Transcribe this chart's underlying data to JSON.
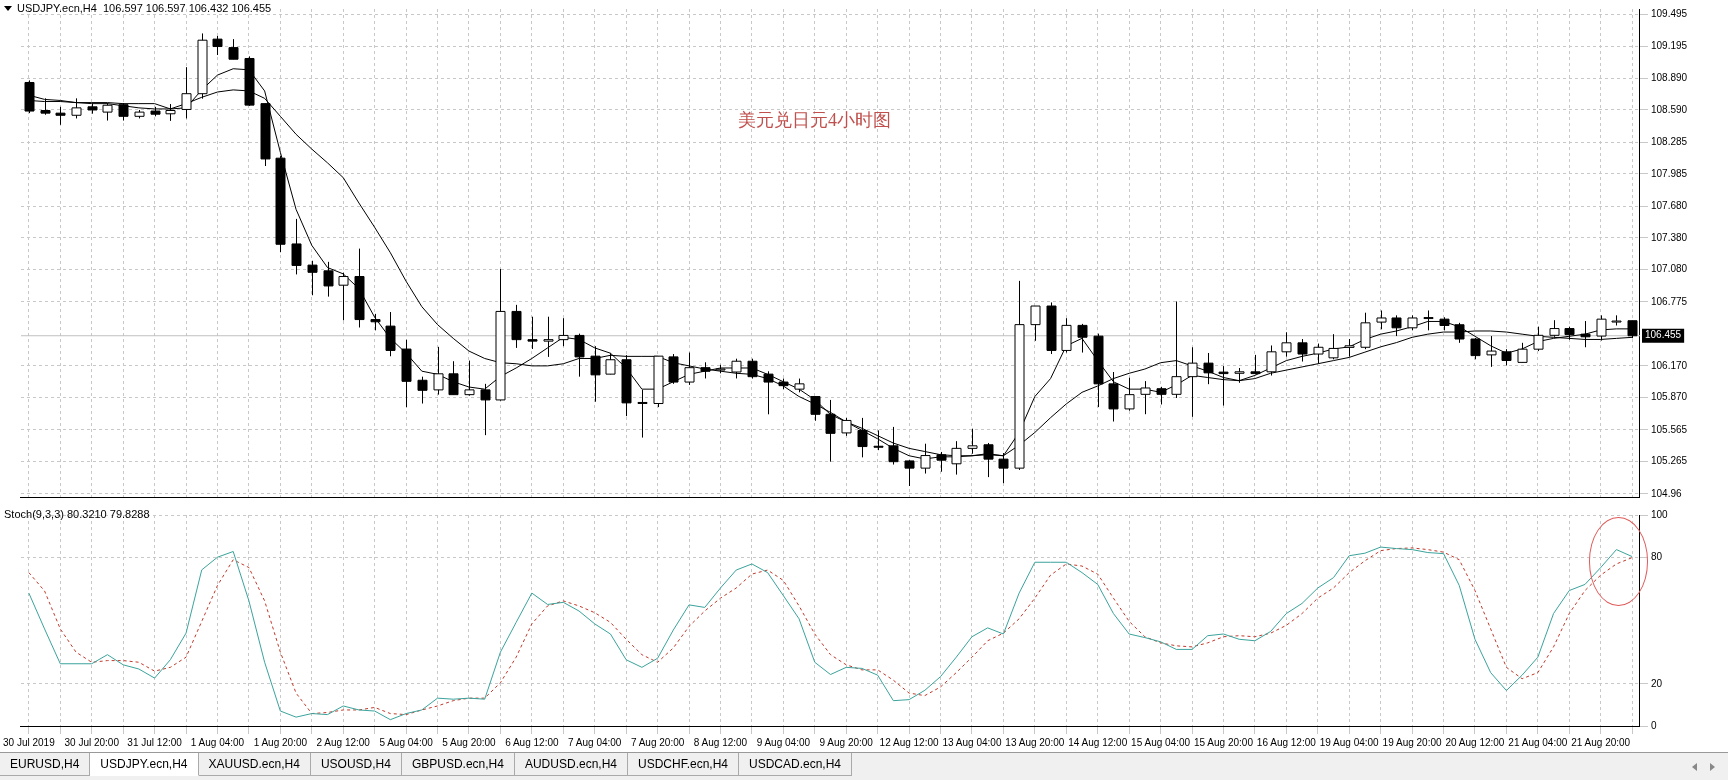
{
  "chart_data": [
    {
      "type": "candlestick",
      "title": "USDJPY.ecn,H4  106.597 106.597 106.432 106.455",
      "annotations": [
        "美元兑日元4小时图"
      ],
      "categories": [
        null,
        null,
        null,
        null,
        null,
        null,
        null,
        null,
        null,
        null,
        null,
        null,
        null,
        null,
        null,
        null,
        null,
        null,
        null,
        null,
        null,
        null,
        null,
        null,
        null,
        null,
        null,
        null,
        null,
        null,
        null,
        null,
        null,
        null,
        null,
        null,
        null,
        null,
        null,
        null,
        null,
        null,
        null,
        null,
        null,
        null,
        null,
        null,
        null,
        null,
        null,
        null,
        null,
        null,
        null,
        null,
        null,
        null,
        null,
        null,
        null,
        null,
        null,
        null,
        null,
        null,
        null,
        null,
        null,
        null,
        null,
        null,
        null,
        null,
        null,
        null,
        null,
        null,
        null,
        null,
        null,
        null,
        null,
        null,
        null,
        null,
        null,
        null,
        null,
        null,
        null,
        null,
        null,
        null,
        null,
        null,
        null,
        null,
        null,
        null,
        null,
        null,
        null
      ],
      "ohlc": [
        [
          108.85,
          108.87,
          108.56,
          108.58
        ],
        [
          108.585,
          108.7,
          108.545,
          108.56
        ],
        [
          108.56,
          108.62,
          108.45,
          108.54
        ],
        [
          108.54,
          108.7,
          108.51,
          108.61
        ],
        [
          108.62,
          108.65,
          108.555,
          108.59
        ],
        [
          108.57,
          108.656,
          108.49,
          108.635
        ],
        [
          108.64,
          108.656,
          108.49,
          108.53
        ],
        [
          108.53,
          108.59,
          108.51,
          108.57
        ],
        [
          108.58,
          108.62,
          108.53,
          108.55
        ],
        [
          108.554,
          108.646,
          108.487,
          108.585
        ],
        [
          108.595,
          108.995,
          108.51,
          108.744
        ],
        [
          108.744,
          109.314,
          108.697,
          109.25
        ],
        [
          109.26,
          109.29,
          109.11,
          109.19
        ],
        [
          109.18,
          109.26,
          109.07,
          109.07
        ],
        [
          109.077,
          109.097,
          108.629,
          108.636
        ],
        [
          108.65,
          108.65,
          108.06,
          108.127
        ],
        [
          108.134,
          108.154,
          107.245,
          107.32
        ],
        [
          107.323,
          107.56,
          107.035,
          107.12
        ],
        [
          107.123,
          107.164,
          106.838,
          107.055
        ],
        [
          107.069,
          107.154,
          106.825,
          106.926
        ],
        [
          106.933,
          107.052,
          106.601,
          107.015
        ],
        [
          107.015,
          107.279,
          106.533,
          106.608
        ],
        [
          106.608,
          106.662,
          106.506,
          106.587
        ],
        [
          106.546,
          106.679,
          106.261,
          106.316
        ],
        [
          106.329,
          106.417,
          105.78,
          106.024
        ],
        [
          106.034,
          106.068,
          105.814,
          105.939
        ],
        [
          105.943,
          106.35,
          105.898,
          106.095
        ],
        [
          106.095,
          106.214,
          105.898,
          105.898
        ],
        [
          105.898,
          106.22,
          105.888,
          105.943
        ],
        [
          105.943,
          106.0,
          105.515,
          105.848
        ],
        [
          105.848,
          107.086,
          105.841,
          106.685
        ],
        [
          106.685,
          106.747,
          106.34,
          106.418
        ],
        [
          106.418,
          106.635,
          106.33,
          106.404
        ],
        [
          106.404,
          106.635,
          106.255,
          106.418
        ],
        [
          106.418,
          106.621,
          106.356,
          106.458
        ],
        [
          106.458,
          106.475,
          106.068,
          106.255
        ],
        [
          106.262,
          106.356,
          105.831,
          106.085
        ],
        [
          106.092,
          106.29,
          106.09,
          106.228
        ],
        [
          106.228,
          106.272,
          105.695,
          105.82
        ],
        [
          105.824,
          105.943,
          105.492,
          105.817
        ],
        [
          105.814,
          106.262,
          105.78,
          106.262
        ],
        [
          106.255,
          106.282,
          106.0,
          106.017
        ],
        [
          106.017,
          106.296,
          105.99,
          106.153
        ],
        [
          106.153,
          106.204,
          106.051,
          106.119
        ],
        [
          106.136,
          106.18,
          106.1,
          106.14
        ],
        [
          106.112,
          106.238,
          106.051,
          106.214
        ],
        [
          106.214,
          106.238,
          106.05,
          106.068
        ],
        [
          106.092,
          106.119,
          105.712,
          106.017
        ],
        [
          106.017,
          106.05,
          105.95,
          105.983
        ],
        [
          105.95,
          106.05,
          105.92,
          106.0
        ],
        [
          105.88,
          105.88,
          105.651,
          105.712
        ],
        [
          105.712,
          105.848,
          105.264,
          105.532
        ],
        [
          105.536,
          105.678,
          105.508,
          105.654
        ],
        [
          105.559,
          105.678,
          105.305,
          105.407
        ],
        [
          105.41,
          105.56,
          105.373,
          105.404
        ],
        [
          105.414,
          105.593,
          105.237,
          105.264
        ],
        [
          105.271,
          105.278,
          105.034,
          105.203
        ],
        [
          105.203,
          105.434,
          105.152,
          105.322
        ],
        [
          105.329,
          105.356,
          105.169,
          105.278
        ],
        [
          105.244,
          105.458,
          105.142,
          105.39
        ],
        [
          105.39,
          105.576,
          105.339,
          105.414
        ],
        [
          105.424,
          105.441,
          105.118,
          105.288
        ],
        [
          105.288,
          105.346,
          105.061,
          105.203
        ],
        [
          105.203,
          106.974,
          105.186,
          106.56
        ],
        [
          106.56,
          106.736,
          106.407,
          106.736
        ],
        [
          106.736,
          106.77,
          106.282,
          106.316
        ],
        [
          106.316,
          106.621,
          106.296,
          106.553
        ],
        [
          106.553,
          106.567,
          106.296,
          106.441
        ],
        [
          106.451,
          106.475,
          105.78,
          106.0
        ],
        [
          106.0,
          106.112,
          105.644,
          105.763
        ],
        [
          105.763,
          106.058,
          105.746,
          105.898
        ],
        [
          105.901,
          106.026,
          105.713,
          105.961
        ],
        [
          105.954,
          105.972,
          105.805,
          105.901
        ],
        [
          105.901,
          106.779,
          105.866,
          106.068
        ],
        [
          106.068,
          106.346,
          105.688,
          106.196
        ],
        [
          106.196,
          106.292,
          105.997,
          106.104
        ],
        [
          106.111,
          106.168,
          105.795,
          106.097
        ],
        [
          106.1,
          106.15,
          106.01,
          106.114
        ],
        [
          106.114,
          106.274,
          106.09,
          106.097
        ],
        [
          106.114,
          106.363,
          106.079,
          106.303
        ],
        [
          106.303,
          106.488,
          106.257,
          106.388
        ],
        [
          106.388,
          106.424,
          106.211,
          106.282
        ],
        [
          106.282,
          106.381,
          106.196,
          106.346
        ],
        [
          106.246,
          106.47,
          106.232,
          106.335
        ],
        [
          106.345,
          106.424,
          106.257,
          106.36
        ],
        [
          106.346,
          106.673,
          106.328,
          106.577
        ],
        [
          106.584,
          106.694,
          106.516,
          106.623
        ],
        [
          106.623,
          106.648,
          106.452,
          106.53
        ],
        [
          106.53,
          106.648,
          106.506,
          106.623
        ],
        [
          106.618,
          106.694,
          106.506,
          106.627
        ],
        [
          106.612,
          106.63,
          106.506,
          106.552
        ],
        [
          106.559,
          106.577,
          106.388,
          106.424
        ],
        [
          106.424,
          106.434,
          106.232,
          106.267
        ],
        [
          106.274,
          106.452,
          106.161,
          106.31
        ],
        [
          106.303,
          106.328,
          106.175,
          106.221
        ],
        [
          106.203,
          106.388,
          106.203,
          106.328
        ],
        [
          106.328,
          106.541,
          106.31,
          106.459
        ],
        [
          106.459,
          106.602,
          106.445,
          106.523
        ],
        [
          106.523,
          106.541,
          106.417,
          106.466
        ],
        [
          106.47,
          106.594,
          106.346,
          106.445
        ],
        [
          106.452,
          106.648,
          106.409,
          106.612
        ],
        [
          106.59,
          106.648,
          106.552,
          106.594
        ],
        [
          106.597,
          106.597,
          106.432,
          106.455
        ]
      ],
      "series": [
        {
          "type": "line",
          "color": "#000000",
          "values": [
            108.73,
            108.69,
            108.68,
            108.66,
            108.65,
            108.65,
            108.63,
            108.61,
            108.6,
            108.6,
            108.61,
            108.78,
            108.92,
            108.98,
            108.97,
            108.77,
            108.19,
            107.65,
            107.31,
            107.1,
            107.04,
            106.9,
            106.63,
            106.43,
            106.29,
            106.12,
            106.09,
            106.02,
            105.97,
            105.95,
            106.07,
            106.15,
            106.24,
            106.34,
            106.44,
            106.42,
            106.34,
            106.29,
            106.15,
            105.95,
            105.95,
            106.02,
            106.09,
            106.12,
            106.15,
            106.15,
            106.15,
            106.09,
            106.02,
            105.95,
            105.85,
            105.71,
            105.64,
            105.56,
            105.48,
            105.39,
            105.32,
            105.29,
            105.31,
            105.31,
            105.32,
            105.34,
            105.32,
            105.54,
            105.88,
            106.05,
            106.36,
            106.43,
            106.22,
            106.02,
            105.95,
            105.95,
            105.92,
            105.99,
            106.08,
            106.06,
            106.04,
            106.03,
            106.08,
            106.15,
            106.22,
            106.26,
            106.29,
            106.33,
            106.35,
            106.42,
            106.47,
            106.5,
            106.54,
            106.59,
            106.59,
            106.54,
            106.45,
            106.36,
            106.29,
            106.33,
            106.4,
            106.43,
            106.45,
            106.47,
            106.51,
            106.52,
            106.52
          ]
        },
        {
          "type": "line",
          "color": "#000000",
          "values": [
            108.68,
            108.67,
            108.67,
            108.66,
            108.66,
            108.66,
            108.65,
            108.65,
            108.65,
            108.6,
            108.65,
            108.71,
            108.76,
            108.78,
            108.77,
            108.7,
            108.53,
            108.36,
            108.22,
            108.09,
            107.95,
            107.71,
            107.48,
            107.24,
            106.97,
            106.73,
            106.56,
            106.43,
            106.31,
            106.24,
            106.2,
            106.19,
            106.17,
            106.17,
            106.19,
            106.24,
            106.24,
            106.27,
            106.26,
            106.26,
            106.26,
            106.2,
            106.17,
            106.14,
            106.12,
            106.1,
            106.09,
            106.05,
            105.98,
            105.88,
            105.81,
            105.73,
            105.64,
            105.58,
            105.51,
            105.44,
            105.39,
            105.36,
            105.33,
            105.32,
            105.32,
            105.33,
            105.32,
            105.42,
            105.54,
            105.68,
            105.81,
            105.92,
            105.98,
            106.05,
            106.1,
            106.14,
            106.2,
            106.22,
            106.17,
            106.12,
            106.06,
            106.03,
            106.05,
            106.1,
            106.13,
            106.16,
            106.19,
            106.22,
            106.25,
            106.3,
            106.35,
            106.39,
            106.44,
            106.47,
            106.49,
            106.49,
            106.5,
            106.5,
            106.49,
            106.47,
            106.45,
            106.44,
            106.43,
            106.42,
            106.42,
            106.43,
            106.44
          ]
        }
      ],
      "ylim": [
        104.93,
        109.545
      ],
      "yticks": [
        104.96,
        105.265,
        105.565,
        {
          "value": 105.87,
          "label": "105.870"
        },
        {
          "value": 106.17,
          "label": "106.170"
        },
        106.775,
        {
          "value": 107.08,
          "label": "107.080"
        },
        {
          "value": 107.38,
          "label": "107.380"
        },
        {
          "value": 107.68,
          "label": "107.680"
        },
        107.985,
        108.285,
        {
          "value": 108.59,
          "label": "108.590"
        },
        {
          "value": 108.89,
          "label": "108.890"
        },
        109.195,
        109.495
      ],
      "ref_lines": [
        {
          "axis": "y",
          "value": 106.455,
          "label": "106.455",
          "color": "#c0c0c0"
        }
      ],
      "grid": true,
      "tick_labels": "y"
    },
    {
      "type": "line",
      "title": "Stoch(9,3,3) 80.3210 79.8288",
      "categories": [
        "30 Jul 2019",
        null,
        null,
        null,
        "30 Jul 20:00",
        null,
        null,
        null,
        "31 Jul 12:00",
        null,
        null,
        null,
        "1 Aug 04:00",
        null,
        null,
        null,
        "1 Aug 20:00",
        null,
        null,
        null,
        "2 Aug 12:00",
        null,
        null,
        null,
        "5 Aug 04:00",
        null,
        null,
        null,
        "5 Aug 20:00",
        null,
        null,
        null,
        "6 Aug 12:00",
        null,
        null,
        null,
        "7 Aug 04:00",
        null,
        null,
        null,
        "7 Aug 20:00",
        null,
        null,
        null,
        "8 Aug 12:00",
        null,
        null,
        null,
        "9 Aug 04:00",
        null,
        null,
        null,
        "9 Aug 20:00",
        null,
        null,
        null,
        "12 Aug 12:00",
        null,
        null,
        null,
        "13 Aug 04:00",
        null,
        null,
        null,
        "13 Aug 20:00",
        null,
        null,
        null,
        "14 Aug 12:00",
        null,
        null,
        null,
        "15 Aug 04:00",
        null,
        null,
        null,
        "15 Aug 20:00",
        null,
        null,
        null,
        "16 Aug 12:00",
        null,
        null,
        null,
        "19 Aug 04:00",
        null,
        null,
        null,
        "19 Aug 20:00",
        null,
        null,
        null,
        "20 Aug 12:00",
        null,
        null,
        null,
        "21 Aug 04:00",
        null,
        null,
        null,
        "21 Aug 20:00",
        null,
        null
      ],
      "series": [
        {
          "color": "#3ba39c",
          "values": [
            63,
            46,
            29.5,
            29.5,
            29.5,
            33.8,
            29,
            27,
            22.7,
            31.4,
            44,
            74,
            80,
            82.7,
            59.3,
            30.2,
            7.1,
            4.2,
            5.9,
            5.4,
            9.5,
            7.6,
            7.1,
            3,
            5.9,
            7.6,
            13.2,
            12.7,
            13.2,
            12.7,
            35,
            49.1,
            63,
            57.6,
            58.6,
            54.5,
            48.4,
            43.6,
            31.4,
            27.8,
            32.1,
            45.5,
            57.4,
            56.2,
            65.4,
            73.9,
            76.8,
            72.7,
            61.8,
            50.8,
            30.2,
            24.4,
            27.8,
            27.3,
            24.1,
            12,
            12.5,
            16.9,
            23.4,
            32.6,
            42.3,
            46.5,
            43.6,
            63,
            77.6,
            77.6,
            77.6,
            72.7,
            67.1,
            53.3,
            43.6,
            41.9,
            39.9,
            36.3,
            36.3,
            42.8,
            43.6,
            41.1,
            40.4,
            44.8,
            53.3,
            58.1,
            65.4,
            70.3,
            80.7,
            81.9,
            84.8,
            84.1,
            83.6,
            82.2,
            81.7,
            66.6,
            41.1,
            25.3,
            16.8,
            24.1,
            32.6,
            53.3,
            64.2,
            67.1,
            75.1,
            83.6,
            80.3
          ]
        },
        {
          "color": "#c0392b",
          "line_style": "dashed",
          "values": [
            72.7,
            64,
            46,
            35,
            30.2,
            31,
            31,
            30.2,
            26,
            27.8,
            32.6,
            49.6,
            66.6,
            78.8,
            75.1,
            59.3,
            35,
            15.6,
            5.9,
            6.4,
            7.6,
            7.6,
            8.8,
            5.9,
            5.4,
            7.6,
            9.5,
            12,
            13.2,
            13.2,
            20.5,
            32.6,
            48.4,
            56.9,
            59.3,
            56.9,
            53.7,
            49.1,
            41.1,
            33.8,
            30.2,
            37,
            47.2,
            54.5,
            60.6,
            65.4,
            72,
            73.9,
            69,
            56.9,
            43.6,
            33.8,
            29,
            26.6,
            26.6,
            21.7,
            15.6,
            14.4,
            18.5,
            25.3,
            32.6,
            40.4,
            44,
            50.8,
            60.6,
            71.5,
            76.8,
            75.8,
            72,
            60.6,
            49.6,
            42.3,
            39.4,
            38,
            37.5,
            39.4,
            42.3,
            42.8,
            42.3,
            44,
            47.7,
            53.3,
            60.6,
            65.4,
            72.7,
            78.3,
            83.1,
            84.1,
            84.4,
            83.6,
            82.4,
            78.8,
            64.2,
            46,
            27.8,
            22.4,
            25.3,
            37.5,
            53.3,
            64.2,
            71.5,
            76.8,
            79.8
          ]
        }
      ],
      "ylim": [
        0,
        100
      ],
      "yticks": [
        0,
        20,
        80,
        100
      ],
      "grid": true
    },
    {
      "type": "other",
      "annotations": [
        "EURUSD,H4",
        "USDJPY.ecn,H4",
        "XAUUSD.ecn,H4",
        "USOUSD,H4",
        "GBPUSD.ecn,H4",
        "AUDUSD.ecn,H4",
        "USDCHF.ecn,H4",
        "USDCAD.ecn,H4"
      ]
    }
  ]
}
